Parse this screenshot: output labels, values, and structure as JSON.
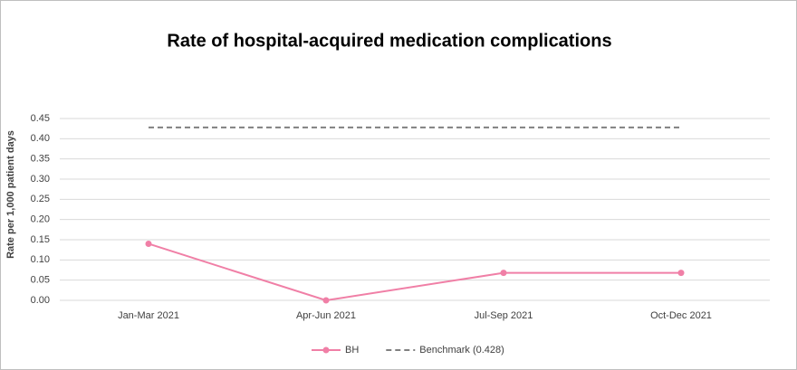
{
  "chart_data": {
    "type": "line",
    "title": "Rate of hospital-acquired medication complications",
    "y_label": "Rate per 1,000 patient days",
    "categories": [
      "Jan-Mar 2021",
      "Apr-Jun 2021",
      "Jul-Sep 2021",
      "Oct-Dec 2021"
    ],
    "series": [
      {
        "name": "BH",
        "color": "#f07fa6",
        "dashed": false,
        "marker": true,
        "values": [
          0.14,
          0,
          0.068,
          0.068
        ]
      },
      {
        "name": "Benchmark (0.428)",
        "color": "#808080",
        "dashed": true,
        "marker": false,
        "values": [
          0.428,
          0.428,
          0.428,
          0.428
        ]
      }
    ],
    "ylim": [
      0,
      0.45
    ],
    "yticks": [
      {
        "value": 0,
        "label": "0.00"
      },
      0.05,
      {
        "value": 0.1,
        "label": "0.10"
      },
      0.15,
      {
        "value": 0.2,
        "label": "0.20"
      },
      0.25,
      {
        "value": 0.3,
        "label": "0.30"
      },
      0.35,
      {
        "value": 0.4,
        "label": "0.40"
      },
      0.45
    ],
    "grid": true,
    "legend": "bottom"
  }
}
